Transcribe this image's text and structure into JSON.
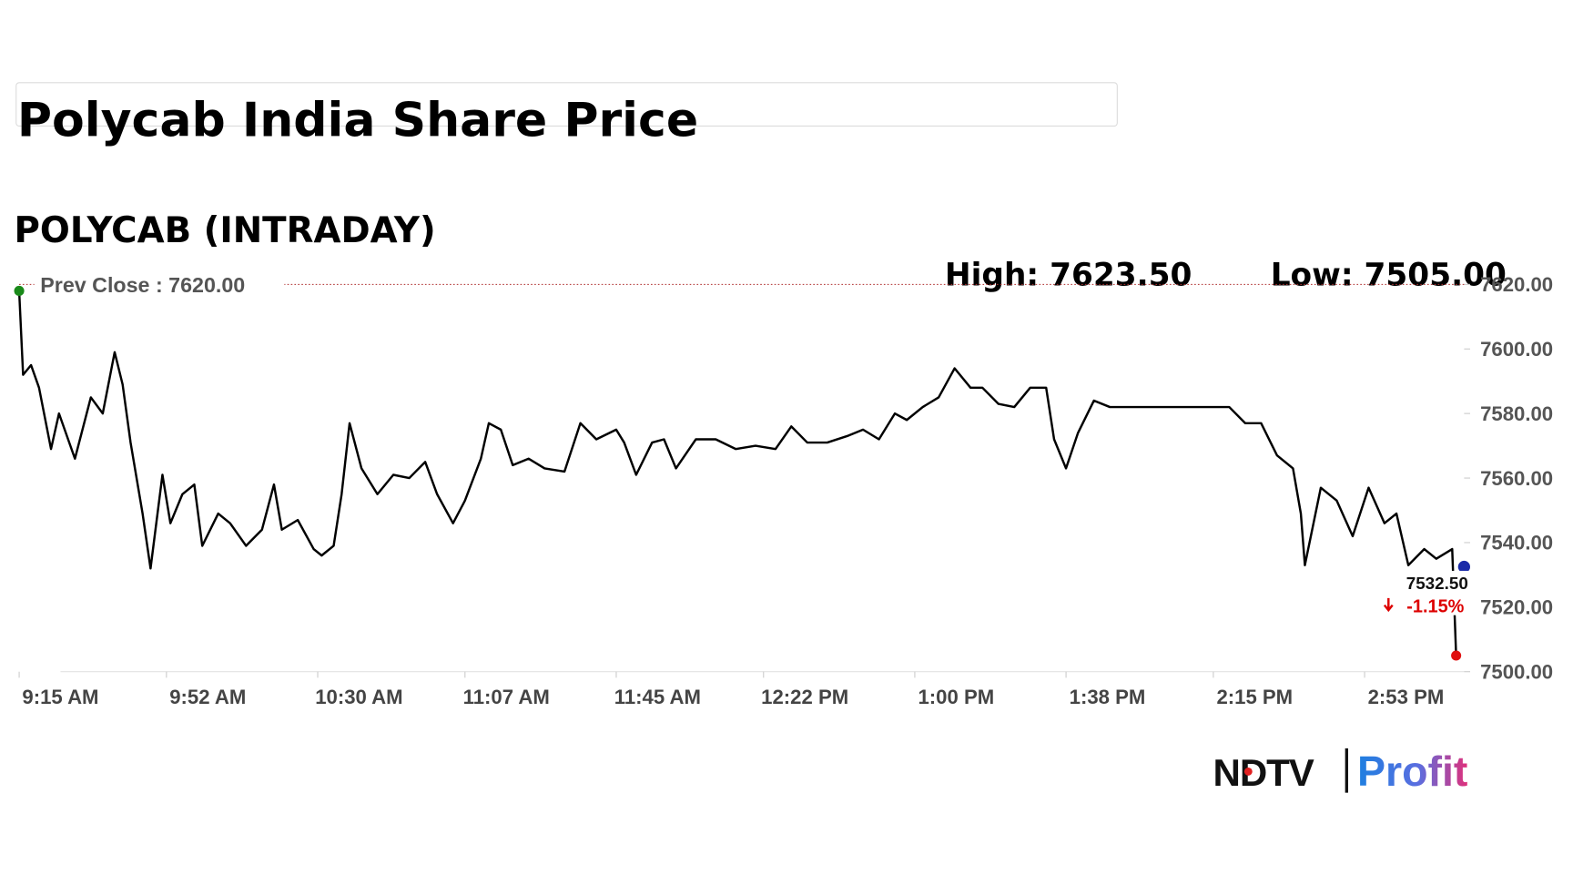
{
  "header": {
    "title": "Polycab India Share Price"
  },
  "chart_data": {
    "type": "line",
    "title": "POLYCAB (INTRADAY)",
    "high": {
      "value": 7623.5,
      "label": "High: 7623.50"
    },
    "low": {
      "value": 7505,
      "label": "Low: 7505.00"
    },
    "prev_close": {
      "value": 7620,
      "label": "Prev Close : 7620.00"
    },
    "last": {
      "value": 7532.5,
      "label": "7532.50"
    },
    "change": {
      "value": -1.15,
      "label": "-1.15%"
    },
    "color": "#000000",
    "x": [
      "9:15",
      "9:16",
      "9:18",
      "9:20",
      "9:23",
      "9:25",
      "9:29",
      "9:33",
      "9:36",
      "9:39",
      "9:41",
      "9:43",
      "9:46",
      "9:48",
      "9:51",
      "9:53",
      "9:56",
      "9:59",
      "10:01",
      "10:05",
      "10:08",
      "10:12",
      "10:16",
      "10:19",
      "10:21",
      "10:25",
      "10:29",
      "10:31",
      "10:34",
      "10:36",
      "10:38",
      "10:41",
      "10:45",
      "10:49",
      "10:53",
      "10:57",
      "11:00",
      "11:04",
      "11:07",
      "11:11",
      "11:13",
      "11:16",
      "11:19",
      "11:23",
      "11:27",
      "11:32",
      "11:36",
      "11:40",
      "11:45",
      "11:47",
      "11:50",
      "11:54",
      "11:57",
      "12:00",
      "12:05",
      "12:10",
      "12:15",
      "12:20",
      "12:25",
      "12:29",
      "12:33",
      "12:38",
      "12:43",
      "12:47",
      "12:51",
      "12:55",
      "12:58",
      "13:02",
      "13:06",
      "13:10",
      "13:14",
      "13:17",
      "13:21",
      "13:25",
      "13:29",
      "13:33",
      "13:35",
      "13:38",
      "13:41",
      "13:45",
      "13:49",
      "13:54",
      "13:59",
      "14:04",
      "14:09",
      "14:14",
      "14:19",
      "14:23",
      "14:27",
      "14:31",
      "14:35",
      "14:37",
      "14:38",
      "14:42",
      "14:46",
      "14:50",
      "14:54",
      "14:58",
      "15:01",
      "15:04",
      "15:08",
      "15:11",
      "15:15",
      "15:16"
    ],
    "values": [
      7618,
      7592,
      7595,
      7588,
      7569,
      7580,
      7566,
      7585,
      7580,
      7599,
      7589,
      7571,
      7549,
      7532,
      7561,
      7546,
      7555,
      7558,
      7539,
      7549,
      7546,
      7539,
      7544,
      7558,
      7544,
      7547,
      7538,
      7536,
      7539,
      7555,
      7577,
      7563,
      7555,
      7561,
      7560,
      7565,
      7555,
      7546,
      7553,
      7566,
      7577,
      7575,
      7564,
      7566,
      7563,
      7562,
      7577,
      7572,
      7575,
      7571,
      7561,
      7571,
      7572,
      7563,
      7572,
      7572,
      7569,
      7570,
      7569,
      7576,
      7571,
      7571,
      7573,
      7575,
      7572,
      7580,
      7578,
      7582,
      7585,
      7594,
      7588,
      7588,
      7583,
      7582,
      7588,
      7588,
      7572,
      7563,
      7574,
      7584,
      7582,
      7582,
      7582,
      7582,
      7582,
      7582,
      7582,
      7577,
      7577,
      7567,
      7563,
      7549,
      7533,
      7557,
      7553,
      7542,
      7557,
      7546,
      7549,
      7533,
      7538,
      7535,
      7538,
      7505
    ],
    "xlim": [
      "9:15",
      "15:18"
    ],
    "xticks": [
      {
        "value": "9:15",
        "label": "9:15 AM"
      },
      {
        "value": "9:52",
        "label": "9:52 AM"
      },
      {
        "value": "10:30",
        "label": "10:30 AM"
      },
      {
        "value": "11:07",
        "label": "11:07 AM"
      },
      {
        "value": "11:45",
        "label": "11:45 AM"
      },
      {
        "value": "12:22",
        "label": "12:22 PM"
      },
      {
        "value": "13:00",
        "label": "1:00 PM"
      },
      {
        "value": "13:38",
        "label": "1:38 PM"
      },
      {
        "value": "14:15",
        "label": "2:15 PM"
      },
      {
        "value": "14:53",
        "label": "2:53 PM"
      }
    ],
    "ylim": [
      7500,
      7620
    ],
    "yticks": [
      {
        "value": 7500,
        "label": "7500.00"
      },
      {
        "value": 7520,
        "label": "7520.00"
      },
      {
        "value": 7540,
        "label": "7540.00"
      },
      {
        "value": 7560,
        "label": "7560.00"
      },
      {
        "value": 7580,
        "label": "7580.00"
      },
      {
        "value": 7600,
        "label": "7600.00"
      },
      {
        "value": 7620,
        "label": "7620.00"
      }
    ]
  },
  "logo": {
    "brand": "NDTV",
    "product": "Profit"
  }
}
